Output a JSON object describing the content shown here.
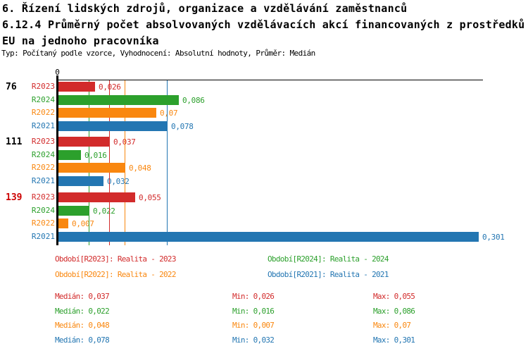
{
  "title": {
    "line1": "6. Řízení lidských zdrojů, organizace a vzdělávání zaměstnanců",
    "line2": "6.12.4 Průměrný počet absolvovaných vzdělávacích akcí financovaných z prostředků",
    "line3": "EU na jednoho pracovníka",
    "subtitle": "Typ: Počítaný podle vzorce, Vyhodnocení: Absolutní hodnoty, Průměr: Medián"
  },
  "axis": {
    "zero_label": "0"
  },
  "colors": {
    "R2023": "#d22b2b",
    "R2024": "#2ca02c",
    "R2022": "#f9870f",
    "R2021": "#2376b2",
    "group_label_default": "#000000",
    "group_label_highlight": "#cc0000",
    "axis": "#000000"
  },
  "chart_data": {
    "type": "bar",
    "orientation": "horizontal",
    "xlim": [
      0,
      0.302
    ],
    "x_zero_tick": "0",
    "series_order": [
      "R2023",
      "R2024",
      "R2022",
      "R2021"
    ],
    "groups": [
      {
        "label": "76",
        "label_color": "#000000",
        "values": {
          "R2023": 0.026,
          "R2024": 0.086,
          "R2022": 0.07,
          "R2021": 0.078
        },
        "value_labels": {
          "R2023": "0,026",
          "R2024": "0,086",
          "R2022": "0,07",
          "R2021": "0,078"
        }
      },
      {
        "label": "111",
        "label_color": "#000000",
        "values": {
          "R2023": 0.037,
          "R2024": 0.016,
          "R2022": 0.048,
          "R2021": 0.032
        },
        "value_labels": {
          "R2023": "0,037",
          "R2024": "0,016",
          "R2022": "0,048",
          "R2021": "0,032"
        }
      },
      {
        "label": "139",
        "label_color": "#cc0000",
        "values": {
          "R2023": 0.055,
          "R2024": 0.022,
          "R2022": 0.007,
          "R2021": 0.301
        },
        "value_labels": {
          "R2023": "0,055",
          "R2024": "0,022",
          "R2022": "0,007",
          "R2021": "0,301"
        }
      }
    ],
    "median_lines": {
      "R2023": 0.037,
      "R2024": 0.022,
      "R2022": 0.048,
      "R2021": 0.078
    }
  },
  "legend": {
    "rows": [
      [
        {
          "series": "R2023",
          "label": "Období[R2023]: Realita - 2023"
        },
        {
          "series": "R2024",
          "label": "Období[R2024]: Realita - 2024"
        }
      ],
      [
        {
          "series": "R2022",
          "label": "Období[R2022]: Realita - 2022"
        },
        {
          "series": "R2021",
          "label": "Období[R2021]: Realita - 2021"
        }
      ]
    ]
  },
  "stats": {
    "rows": [
      {
        "series": "R2023",
        "median": "Medián: 0,037",
        "min": "Min: 0,026",
        "max": "Max: 0,055"
      },
      {
        "series": "R2024",
        "median": "Medián: 0,022",
        "min": "Min: 0,016",
        "max": "Max: 0,086"
      },
      {
        "series": "R2022",
        "median": "Medián: 0,048",
        "min": "Min: 0,007",
        "max": "Max: 0,07"
      },
      {
        "series": "R2021",
        "median": "Medián: 0,078",
        "min": "Min: 0,032",
        "max": "Max: 0,301"
      }
    ]
  }
}
